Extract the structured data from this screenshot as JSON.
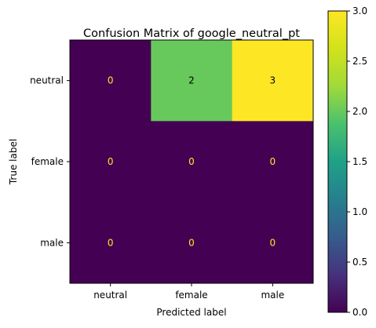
{
  "chart_data": {
    "type": "heatmap",
    "title": "Confusion Matrix of google_neutral_pt",
    "xlabel": "Predicted label",
    "ylabel": "True label",
    "x_categories": [
      "neutral",
      "female",
      "male"
    ],
    "y_categories": [
      "neutral",
      "female",
      "male"
    ],
    "values": [
      [
        0,
        2,
        3
      ],
      [
        0,
        0,
        0
      ],
      [
        0,
        0,
        0
      ]
    ],
    "colormap": "viridis",
    "vmin": 0,
    "vmax": 3,
    "colorbar_ticks": [
      "0.0",
      "0.5",
      "1.0",
      "1.5",
      "2.0",
      "2.5",
      "3.0"
    ],
    "text_color_dark_cells": "#fde725",
    "text_color_light_cells": "#000000"
  }
}
